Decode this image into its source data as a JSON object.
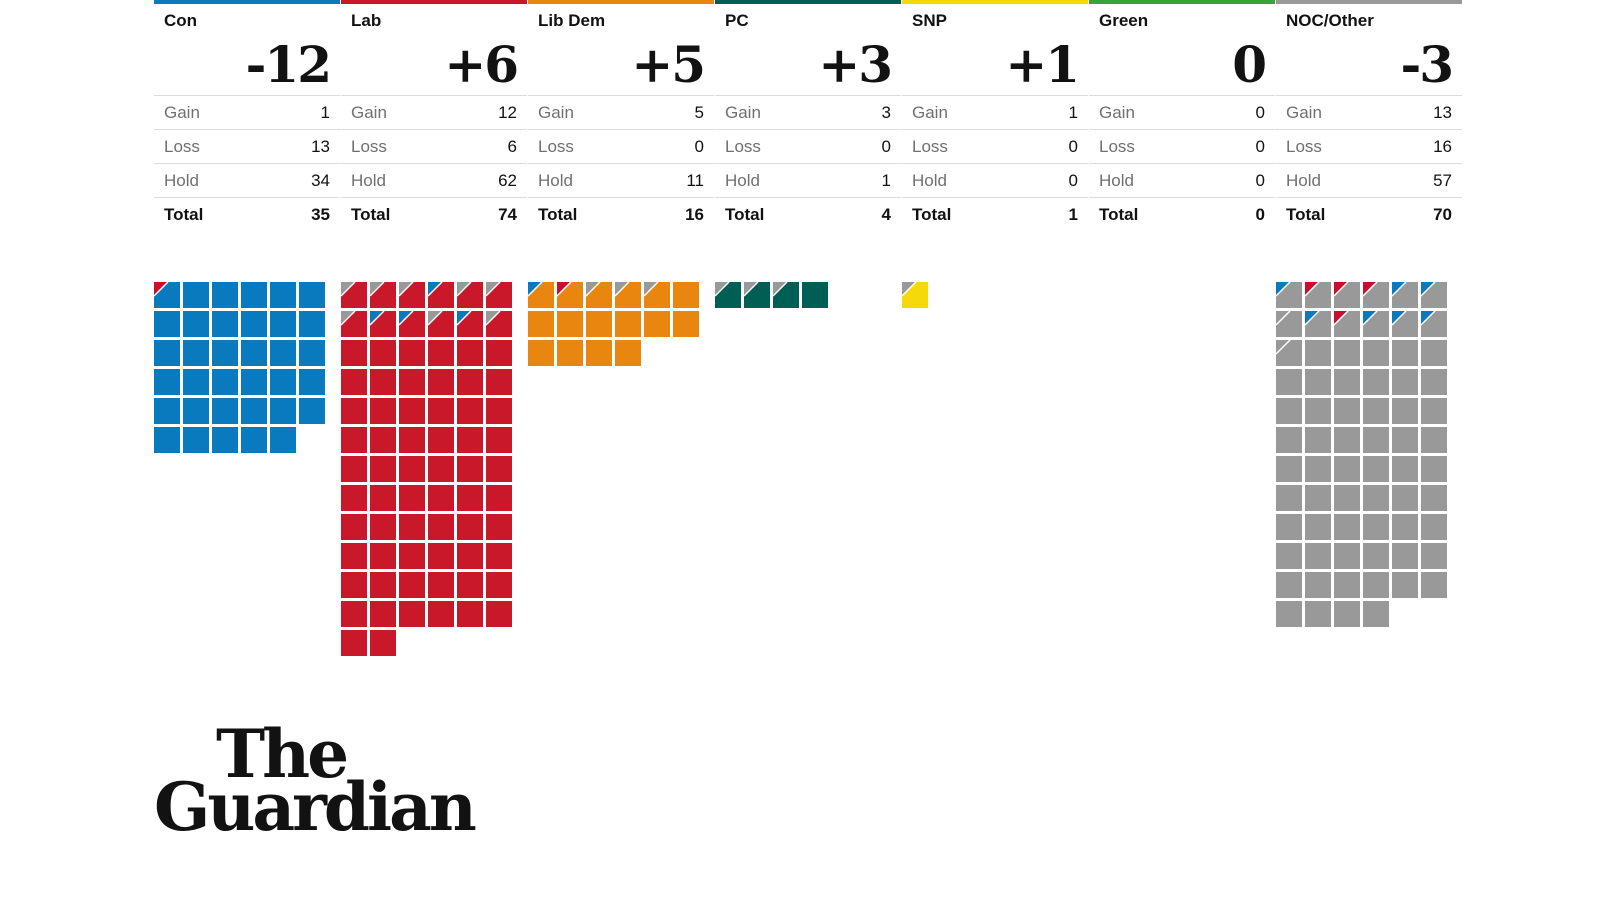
{
  "chart_data": {
    "type": "waffle",
    "parties": [
      {
        "name": "Con",
        "net": "-12",
        "gain": 1,
        "loss": 13,
        "hold": 34,
        "total": 35,
        "color": "#0a7abf",
        "gain_from": [
          "#c8102e"
        ]
      },
      {
        "name": "Lab",
        "net": "+6",
        "gain": 12,
        "loss": 6,
        "hold": 62,
        "total": 74,
        "color": "#c8182a",
        "gain_from": [
          "#999999",
          "#999999",
          "#999999",
          "#0a7abf",
          "#999999",
          "#999999",
          "#999999",
          "#0a7abf",
          "#0a7abf",
          "#999999",
          "#0a7abf",
          "#999999"
        ]
      },
      {
        "name": "Lib Dem",
        "net": "+5",
        "gain": 5,
        "loss": 0,
        "hold": 11,
        "total": 16,
        "color": "#e8860f",
        "gain_from": [
          "#0a7abf",
          "#c8102e",
          "#999999",
          "#999999",
          "#999999"
        ]
      },
      {
        "name": "PC",
        "net": "+3",
        "gain": 3,
        "loss": 0,
        "hold": 1,
        "total": 4,
        "color": "#005f54",
        "gain_from": [
          "#999999",
          "#999999",
          "#999999"
        ]
      },
      {
        "name": "SNP",
        "net": "+1",
        "gain": 1,
        "loss": 0,
        "hold": 0,
        "total": 1,
        "color": "#f5d90a",
        "gain_from": [
          "#999999"
        ]
      },
      {
        "name": "Green",
        "net": "0",
        "gain": 0,
        "loss": 0,
        "hold": 0,
        "total": 0,
        "color": "#39a537",
        "gain_from": []
      },
      {
        "name": "NOC/Other",
        "net": "-3",
        "gain": 13,
        "loss": 16,
        "hold": 57,
        "total": 70,
        "color": "#999999",
        "gain_from": [
          "#0a7abf",
          "#c8102e",
          "#c8102e",
          "#c8102e",
          "#0a7abf",
          "#0a7abf",
          "#999999",
          "#0a7abf",
          "#c8102e",
          "#0a7abf",
          "#0a7abf",
          "#0a7abf",
          "#999999"
        ]
      }
    ],
    "row_labels": {
      "gain": "Gain",
      "loss": "Loss",
      "hold": "Hold",
      "total": "Total"
    }
  },
  "branding": {
    "logo_line1": "The",
    "logo_line2": "Guardian"
  }
}
